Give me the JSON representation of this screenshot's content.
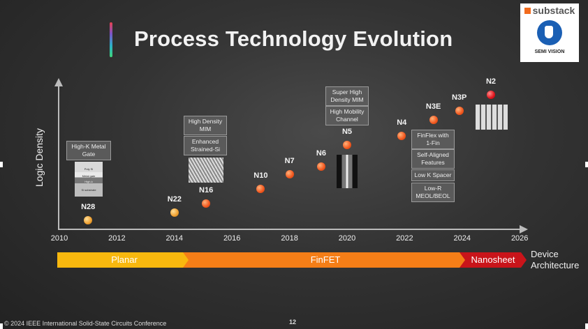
{
  "slide": {
    "title": "Process Technology Evolution",
    "footer": "© 2024 IEEE International Solid-State Circuits Conference",
    "page_number": "12"
  },
  "logo": {
    "top_text": "substack",
    "bottom_text": "SEMI VISION",
    "brand_color": "#f26b1d",
    "mark_color": "#1a5fb4"
  },
  "axes": {
    "y_label": "Logic Density",
    "x_ticks": [
      "2010",
      "2012",
      "2014",
      "2016",
      "2018",
      "2020",
      "2022",
      "2024",
      "2026"
    ]
  },
  "nodes": [
    {
      "label": "N28",
      "year": 2011.0
    },
    {
      "label": "N22",
      "year": 2014.0
    },
    {
      "label": "N16",
      "year": 2015.1
    },
    {
      "label": "N10",
      "year": 2017.0
    },
    {
      "label": "N7",
      "year": 2018.0
    },
    {
      "label": "N6",
      "year": 2019.1
    },
    {
      "label": "N5",
      "year": 2020.0
    },
    {
      "label": "N4",
      "year": 2021.9
    },
    {
      "label": "N3E",
      "year": 2023.0
    },
    {
      "label": "N3P",
      "year": 2023.9
    },
    {
      "label": "N2",
      "year": 2025.0
    }
  ],
  "annotations": {
    "hkmg": "High-K Metal Gate",
    "hkmg_image_lines": [
      "Poly Si",
      "Metal gate",
      "High-k",
      "Si substrate"
    ],
    "mim_16": "High Density MIM",
    "strained": "Enhanced Strained-Si",
    "shd_mim": "Super High Density MIM",
    "mobility": "High Mobility Channel",
    "finflex": "FinFlex with 1-Fin",
    "self_aligned": "Self-Aligned Features",
    "lowk": "Low K Spacer",
    "lowr": "Low-R MEOL/BEOL"
  },
  "architecture": {
    "planar": "Planar",
    "finfet": "FinFET",
    "nanosheet": "Nanosheet",
    "label_line1": "Device",
    "label_line2": "Architecture",
    "colors": {
      "planar": "#f8b80e",
      "finfet": "#f57e17",
      "nanosheet": "#c9141a"
    }
  }
}
